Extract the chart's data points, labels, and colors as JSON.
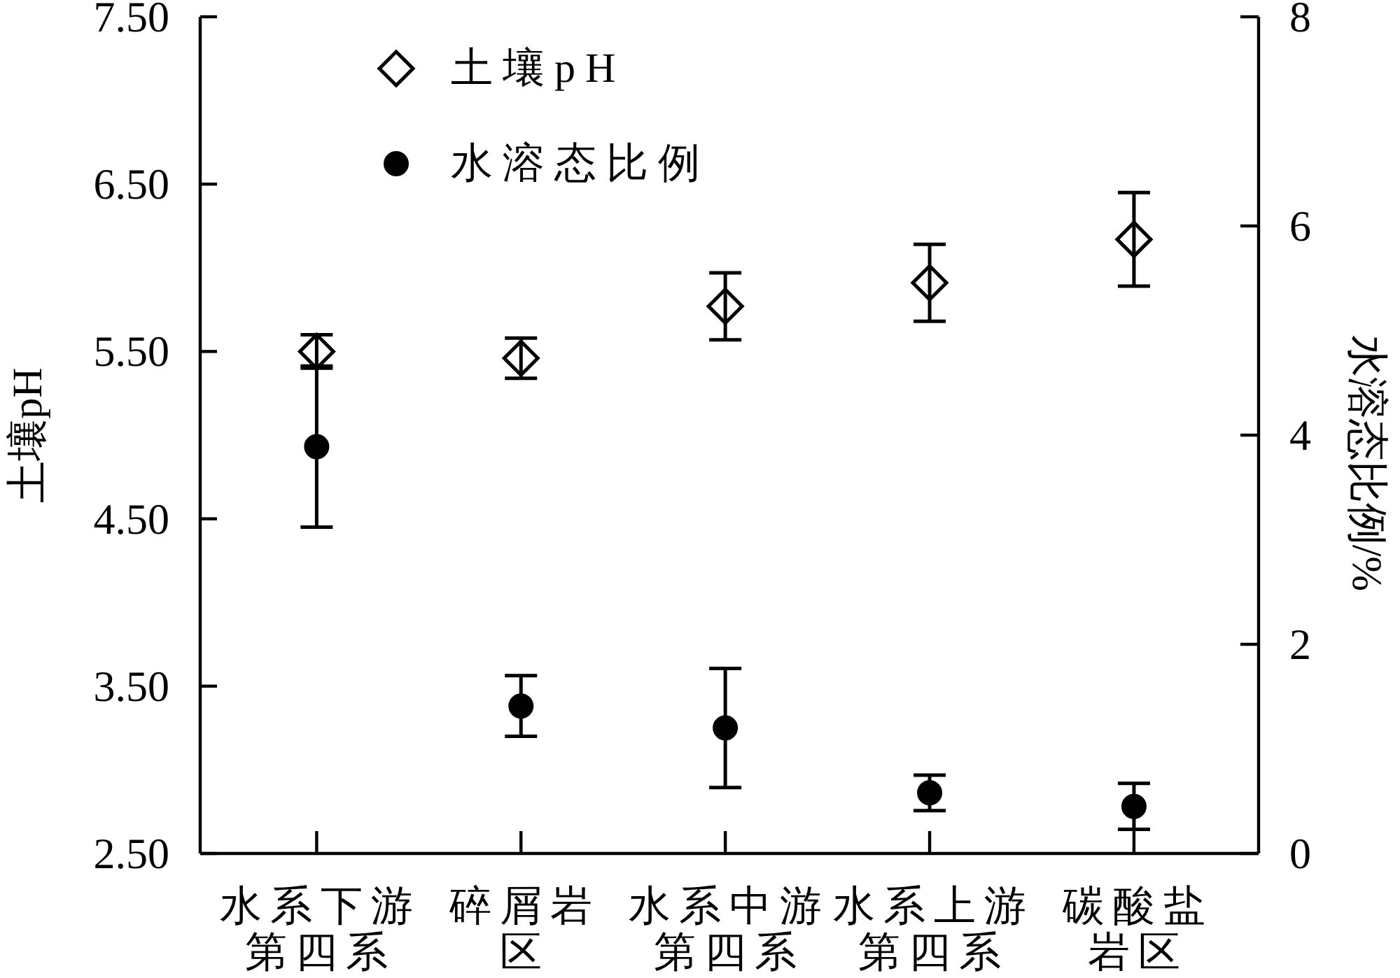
{
  "chart_data": {
    "type": "scatter",
    "categories": [
      "水系下游第四系",
      "碎屑岩区",
      "水系中游第四系",
      "水系上游第四系",
      "碳酸盐岩区"
    ],
    "ylabel": "土壤pH",
    "y2label": "水溶态比例/%",
    "ylim": [
      2.5,
      7.5
    ],
    "yticks": [
      {
        "value": 2.5,
        "label": "2.50"
      },
      {
        "value": 3.5,
        "label": "3.50"
      },
      {
        "value": 4.5,
        "label": "4.50"
      },
      {
        "value": 5.5,
        "label": "5.50"
      },
      {
        "value": 6.5,
        "label": "6.50"
      },
      {
        "value": 7.5,
        "label": "7.50"
      }
    ],
    "y2lim": [
      0,
      8
    ],
    "y2ticks": [
      0,
      2,
      4,
      6,
      8
    ],
    "series": [
      {
        "name": "土壤pH",
        "color": "#000000",
        "marker": "diamond",
        "values": [
          5.5,
          5.46,
          5.77,
          5.91,
          6.17
        ],
        "errors": [
          0.1,
          0.12,
          0.2,
          0.23,
          0.28
        ]
      },
      {
        "name": "水溶态比例",
        "color": "#000000",
        "marker": "circle",
        "axis": "y2",
        "values": [
          3.89,
          1.41,
          1.2,
          0.58,
          0.45
        ],
        "errors": [
          0.77,
          0.29,
          0.57,
          0.17,
          0.22
        ]
      }
    ],
    "legend": "top left"
  }
}
